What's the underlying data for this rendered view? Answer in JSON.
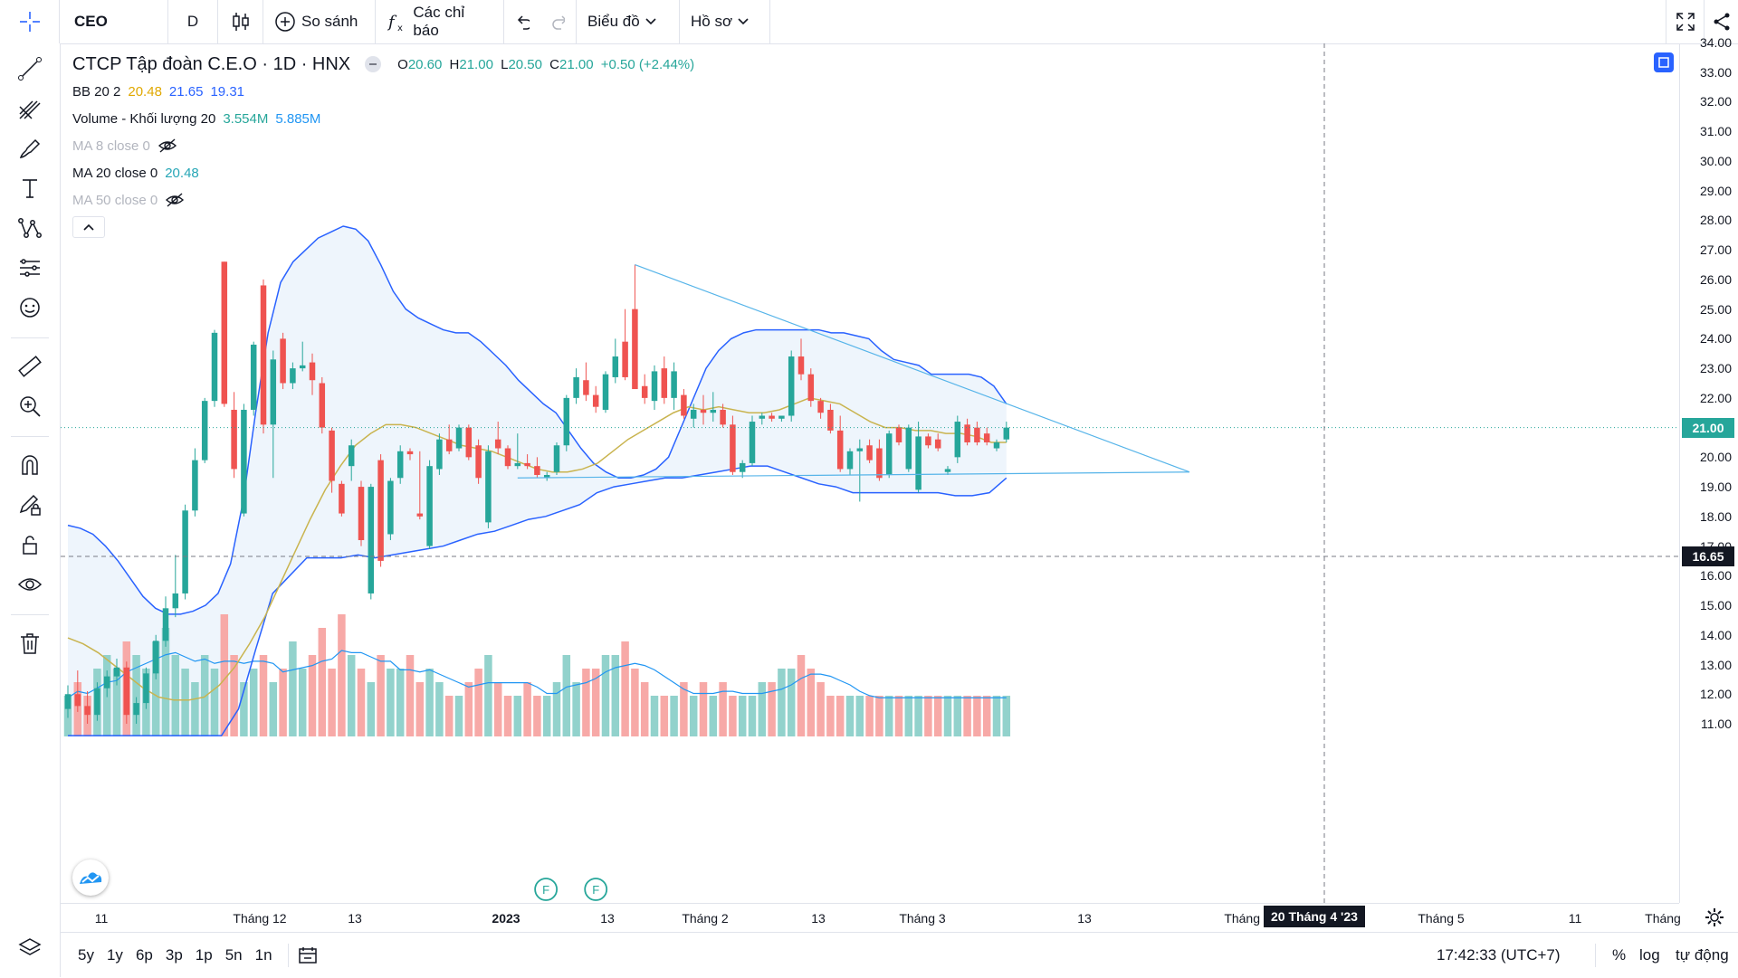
{
  "toolbar": {
    "symbol": "CEO",
    "interval": "D",
    "compare_label": "So sánh",
    "indicators_label": "Các chỉ báo",
    "chart_label": "Biểu đồ",
    "profile_label": "Hồ sơ"
  },
  "legend": {
    "title": "CTCP Tập đoàn C.E.O · 1D · HNX",
    "o_label": "O",
    "o": "20.60",
    "h_label": "H",
    "h": "21.00",
    "l_label": "L",
    "l": "20.50",
    "c_label": "C",
    "c": "21.00",
    "change": "+0.50 (+2.44%)",
    "bb_label": "BB 20 2",
    "bb_mid": "20.48",
    "bb_up": "21.65",
    "bb_low": "19.31",
    "volume_label": "Volume - Khối lượng 20",
    "volume_val": "3.554M",
    "volume_ma": "5.885M",
    "ma8_label": "MA 8 close 0",
    "ma20_label": "MA 20 close 0",
    "ma20_val": "20.48",
    "ma50_label": "MA 50 close 0"
  },
  "price_axis": {
    "labels": [
      "34.00",
      "33.00",
      "32.00",
      "31.00",
      "30.00",
      "29.00",
      "28.00",
      "27.00",
      "26.00",
      "25.00",
      "24.00",
      "23.00",
      "22.00",
      "21.00",
      "20.00",
      "19.00",
      "18.00",
      "17.00",
      "16.00",
      "15.00",
      "14.00",
      "13.00",
      "12.00",
      "11.00"
    ],
    "last_price": "21.00",
    "crosshair_price": "16.65"
  },
  "time_axis": {
    "labels": [
      "11",
      "Tháng 12",
      "13",
      "2023",
      "13",
      "Tháng 2",
      "13",
      "Tháng 3",
      "13",
      "Tháng 4",
      "13",
      "Tháng 5",
      "11",
      "Tháng"
    ],
    "crosshair_label": "20 Tháng 4 '23"
  },
  "bottom": {
    "ranges": [
      "5y",
      "1y",
      "6p",
      "3p",
      "1p",
      "5n",
      "1n"
    ],
    "time": "17:42:33 (UTC+7)",
    "percent": "%",
    "log": "log",
    "auto": "tự động"
  },
  "markers": {
    "f_label": "F"
  },
  "colors": {
    "up": "#26a69a",
    "down": "#ef5350",
    "up_vol": "#92d2cc",
    "down_vol": "#f7a9a7",
    "bb": "#2962ff",
    "ma20": "#c9b44f",
    "bb_fill": "#eaf2fb",
    "trendline": "#56b4e9",
    "accent": "#2962ff"
  },
  "chart_data": {
    "type": "candlestick",
    "price_ylim": [
      10.5,
      34.3
    ],
    "candles": [
      {
        "o": 11.5,
        "h": 12.3,
        "l": 11.2,
        "c": 12.0
      },
      {
        "o": 12.0,
        "h": 12.8,
        "l": 11.4,
        "c": 11.6
      },
      {
        "o": 11.6,
        "h": 12.1,
        "l": 11.0,
        "c": 11.3
      },
      {
        "o": 11.3,
        "h": 12.4,
        "l": 11.1,
        "c": 12.2
      },
      {
        "o": 12.2,
        "h": 12.8,
        "l": 11.9,
        "c": 12.6
      },
      {
        "o": 12.6,
        "h": 13.2,
        "l": 12.3,
        "c": 12.9
      },
      {
        "o": 12.9,
        "h": 13.1,
        "l": 11.0,
        "c": 11.3
      },
      {
        "o": 11.3,
        "h": 11.9,
        "l": 11.0,
        "c": 11.7
      },
      {
        "o": 11.7,
        "h": 12.9,
        "l": 11.5,
        "c": 12.7
      },
      {
        "o": 12.7,
        "h": 14.0,
        "l": 12.5,
        "c": 13.8
      },
      {
        "o": 13.8,
        "h": 15.3,
        "l": 13.6,
        "c": 14.9
      },
      {
        "o": 14.9,
        "h": 16.7,
        "l": 14.6,
        "c": 15.4
      },
      {
        "o": 15.4,
        "h": 18.4,
        "l": 15.2,
        "c": 18.2
      },
      {
        "o": 18.2,
        "h": 20.3,
        "l": 18.0,
        "c": 19.9
      },
      {
        "o": 19.9,
        "h": 22.0,
        "l": 19.8,
        "c": 21.9
      },
      {
        "o": 21.9,
        "h": 24.3,
        "l": 21.7,
        "c": 24.2
      },
      {
        "o": 26.6,
        "h": 26.6,
        "l": 21.7,
        "c": 21.8
      },
      {
        "o": 21.6,
        "h": 22.2,
        "l": 19.3,
        "c": 19.6
      },
      {
        "o": 18.1,
        "h": 21.8,
        "l": 18.0,
        "c": 21.6
      },
      {
        "o": 21.6,
        "h": 23.9,
        "l": 21.4,
        "c": 23.8
      },
      {
        "o": 25.8,
        "h": 26.0,
        "l": 20.8,
        "c": 21.1
      },
      {
        "o": 21.1,
        "h": 23.6,
        "l": 19.3,
        "c": 23.3
      },
      {
        "o": 24.0,
        "h": 24.2,
        "l": 22.3,
        "c": 22.5
      },
      {
        "o": 22.5,
        "h": 23.2,
        "l": 22.3,
        "c": 23.0
      },
      {
        "o": 23.0,
        "h": 23.9,
        "l": 22.9,
        "c": 23.1
      },
      {
        "o": 23.2,
        "h": 23.5,
        "l": 22.1,
        "c": 22.6
      },
      {
        "o": 22.5,
        "h": 22.7,
        "l": 20.8,
        "c": 21.0
      },
      {
        "o": 20.9,
        "h": 21.0,
        "l": 18.8,
        "c": 19.2
      },
      {
        "o": 19.1,
        "h": 19.2,
        "l": 18.0,
        "c": 18.1
      },
      {
        "o": 19.7,
        "h": 20.6,
        "l": 19.2,
        "c": 20.4
      },
      {
        "o": 19.0,
        "h": 19.2,
        "l": 17.0,
        "c": 17.2
      },
      {
        "o": 15.4,
        "h": 19.1,
        "l": 15.2,
        "c": 19.0
      },
      {
        "o": 19.9,
        "h": 20.1,
        "l": 16.3,
        "c": 16.5
      },
      {
        "o": 17.4,
        "h": 19.3,
        "l": 17.2,
        "c": 19.2
      },
      {
        "o": 19.3,
        "h": 20.4,
        "l": 19.1,
        "c": 20.2
      },
      {
        "o": 20.2,
        "h": 20.3,
        "l": 19.9,
        "c": 20.1
      },
      {
        "o": 18.1,
        "h": 20.2,
        "l": 17.9,
        "c": 18.0
      },
      {
        "o": 17.0,
        "h": 19.9,
        "l": 16.9,
        "c": 19.7
      },
      {
        "o": 19.6,
        "h": 20.8,
        "l": 19.4,
        "c": 20.6
      },
      {
        "o": 20.6,
        "h": 21.1,
        "l": 20.1,
        "c": 20.2
      },
      {
        "o": 20.3,
        "h": 21.1,
        "l": 20.2,
        "c": 21.0
      },
      {
        "o": 21.0,
        "h": 21.1,
        "l": 19.9,
        "c": 20.0
      },
      {
        "o": 20.4,
        "h": 20.6,
        "l": 19.1,
        "c": 19.3
      },
      {
        "o": 17.8,
        "h": 20.4,
        "l": 17.6,
        "c": 20.2
      },
      {
        "o": 20.6,
        "h": 21.2,
        "l": 20.1,
        "c": 20.3
      },
      {
        "o": 20.3,
        "h": 20.4,
        "l": 19.6,
        "c": 19.7
      },
      {
        "o": 19.7,
        "h": 20.8,
        "l": 19.6,
        "c": 19.8
      },
      {
        "o": 19.8,
        "h": 20.1,
        "l": 19.6,
        "c": 19.7
      },
      {
        "o": 19.7,
        "h": 20.0,
        "l": 19.3,
        "c": 19.4
      },
      {
        "o": 19.3,
        "h": 19.5,
        "l": 19.2,
        "c": 19.4
      },
      {
        "o": 19.5,
        "h": 20.5,
        "l": 19.4,
        "c": 20.4
      },
      {
        "o": 20.4,
        "h": 22.1,
        "l": 20.2,
        "c": 22.0
      },
      {
        "o": 22.0,
        "h": 23.0,
        "l": 21.8,
        "c": 22.7
      },
      {
        "o": 22.6,
        "h": 23.2,
        "l": 21.9,
        "c": 22.1
      },
      {
        "o": 22.1,
        "h": 22.4,
        "l": 21.5,
        "c": 21.7
      },
      {
        "o": 21.6,
        "h": 22.9,
        "l": 21.5,
        "c": 22.8
      },
      {
        "o": 22.7,
        "h": 24.0,
        "l": 22.5,
        "c": 23.4
      },
      {
        "o": 23.9,
        "h": 25.0,
        "l": 22.6,
        "c": 22.7
      },
      {
        "o": 25.0,
        "h": 26.5,
        "l": 22.3,
        "c": 22.3
      },
      {
        "o": 22.4,
        "h": 22.8,
        "l": 21.8,
        "c": 22.0
      },
      {
        "o": 21.9,
        "h": 23.1,
        "l": 21.6,
        "c": 22.9
      },
      {
        "o": 23.0,
        "h": 23.4,
        "l": 21.8,
        "c": 22.0
      },
      {
        "o": 22.0,
        "h": 23.2,
        "l": 21.6,
        "c": 22.9
      },
      {
        "o": 22.1,
        "h": 22.3,
        "l": 21.3,
        "c": 21.4
      },
      {
        "o": 21.3,
        "h": 21.8,
        "l": 21.0,
        "c": 21.6
      },
      {
        "o": 21.6,
        "h": 22.1,
        "l": 21.1,
        "c": 21.5
      },
      {
        "o": 21.5,
        "h": 22.2,
        "l": 21.2,
        "c": 21.6
      },
      {
        "o": 21.6,
        "h": 21.8,
        "l": 21.0,
        "c": 21.1
      },
      {
        "o": 21.1,
        "h": 21.4,
        "l": 19.4,
        "c": 19.5
      },
      {
        "o": 19.5,
        "h": 19.9,
        "l": 19.3,
        "c": 19.8
      },
      {
        "o": 19.8,
        "h": 21.4,
        "l": 19.7,
        "c": 21.2
      },
      {
        "o": 21.3,
        "h": 21.5,
        "l": 21.1,
        "c": 21.4
      },
      {
        "o": 21.4,
        "h": 21.5,
        "l": 21.2,
        "c": 21.3
      },
      {
        "o": 21.3,
        "h": 21.4,
        "l": 21.2,
        "c": 21.4
      },
      {
        "o": 21.4,
        "h": 23.6,
        "l": 21.2,
        "c": 23.4
      },
      {
        "o": 23.4,
        "h": 24.0,
        "l": 22.6,
        "c": 22.8
      },
      {
        "o": 22.8,
        "h": 23.0,
        "l": 21.7,
        "c": 21.9
      },
      {
        "o": 21.9,
        "h": 22.0,
        "l": 21.3,
        "c": 21.5
      },
      {
        "o": 21.6,
        "h": 21.8,
        "l": 20.8,
        "c": 20.9
      },
      {
        "o": 20.9,
        "h": 21.4,
        "l": 19.5,
        "c": 19.6
      },
      {
        "o": 19.6,
        "h": 20.3,
        "l": 19.4,
        "c": 20.2
      },
      {
        "o": 20.2,
        "h": 20.6,
        "l": 18.5,
        "c": 20.3
      },
      {
        "o": 20.4,
        "h": 20.6,
        "l": 19.8,
        "c": 19.9
      },
      {
        "o": 20.3,
        "h": 20.6,
        "l": 19.2,
        "c": 19.3
      },
      {
        "o": 19.4,
        "h": 20.9,
        "l": 19.3,
        "c": 20.8
      },
      {
        "o": 21.0,
        "h": 21.1,
        "l": 20.4,
        "c": 20.5
      },
      {
        "o": 19.6,
        "h": 21.1,
        "l": 19.5,
        "c": 21.0
      },
      {
        "o": 18.9,
        "h": 21.2,
        "l": 18.8,
        "c": 20.7
      },
      {
        "o": 20.7,
        "h": 20.8,
        "l": 20.3,
        "c": 20.4
      },
      {
        "o": 20.6,
        "h": 20.8,
        "l": 20.2,
        "c": 20.3
      },
      {
        "o": 19.5,
        "h": 19.7,
        "l": 19.4,
        "c": 19.6
      },
      {
        "o": 20.0,
        "h": 21.4,
        "l": 19.8,
        "c": 21.2
      },
      {
        "o": 21.1,
        "h": 21.3,
        "l": 20.4,
        "c": 20.5
      },
      {
        "o": 21.0,
        "h": 21.2,
        "l": 20.4,
        "c": 20.5
      },
      {
        "o": 20.8,
        "h": 21.0,
        "l": 20.4,
        "c": 20.5
      },
      {
        "o": 20.3,
        "h": 20.6,
        "l": 20.2,
        "c": 20.5
      },
      {
        "o": 20.6,
        "h": 21.2,
        "l": 20.5,
        "c": 21.0
      }
    ],
    "volume_rel": [
      0.3,
      0.4,
      0.3,
      0.5,
      0.6,
      0.5,
      0.7,
      0.6,
      0.5,
      0.7,
      0.8,
      0.6,
      0.5,
      0.4,
      0.6,
      0.5,
      0.9,
      0.6,
      0.4,
      0.5,
      0.6,
      0.4,
      0.5,
      0.7,
      0.5,
      0.6,
      0.8,
      0.5,
      0.9,
      0.6,
      0.5,
      0.4,
      0.6,
      0.5,
      0.5,
      0.6,
      0.4,
      0.5,
      0.4,
      0.3,
      0.3,
      0.4,
      0.5,
      0.6,
      0.4,
      0.3,
      0.3,
      0.4,
      0.3,
      0.3,
      0.4,
      0.6,
      0.4,
      0.5,
      0.5,
      0.6,
      0.6,
      0.7,
      0.5,
      0.4,
      0.3,
      0.3,
      0.3,
      0.4,
      0.3,
      0.4,
      0.3,
      0.4,
      0.3,
      0.3,
      0.3,
      0.4,
      0.4,
      0.5,
      0.5,
      0.6,
      0.5,
      0.4,
      0.3,
      0.3,
      0.3,
      0.3,
      0.3,
      0.3,
      0.3,
      0.3,
      0.3,
      0.3,
      0.3,
      0.3,
      0.3,
      0.3,
      0.3,
      0.3,
      0.3,
      0.3,
      0.3
    ],
    "bb_upper": [
      17.7,
      17.6,
      17.4,
      17.0,
      16.5,
      15.9,
      15.3,
      14.9,
      14.7,
      14.7,
      14.8,
      15.0,
      15.4,
      16.4,
      18.5,
      21.5,
      24.2,
      25.9,
      26.6,
      27.0,
      27.4,
      27.6,
      27.8,
      27.7,
      27.3,
      26.5,
      25.6,
      25.0,
      24.7,
      24.5,
      24.3,
      24.2,
      24.2,
      23.9,
      23.5,
      23.1,
      22.6,
      22.2,
      21.8,
      21.5,
      20.9,
      20.3,
      19.8,
      19.5,
      19.3,
      19.3,
      19.4,
      19.6,
      20.0,
      21.0,
      22.0,
      23.0,
      23.6,
      24.0,
      24.2,
      24.3,
      24.3,
      24.3,
      24.3,
      24.3,
      24.3,
      24.2,
      24.2,
      24.1,
      24.0,
      23.6,
      23.3,
      23.2,
      23.1,
      22.8,
      22.8,
      22.8,
      22.8,
      22.7,
      22.4,
      21.8
    ],
    "bb_lower": [
      10.5,
      10.0,
      9.0,
      7.0,
      5.0,
      3.0,
      2.0,
      4.0,
      8.0,
      10.0,
      11.5,
      13.5,
      15.4,
      16.0,
      16.6,
      16.6,
      16.6,
      16.7,
      16.6,
      16.7,
      16.8,
      16.9,
      17.0,
      17.2,
      17.4,
      17.5,
      17.7,
      17.9,
      18.0,
      18.2,
      18.4,
      18.8,
      19.0,
      19.1,
      19.2,
      19.3,
      19.3,
      19.4,
      19.5,
      19.6,
      19.7,
      19.7,
      19.5,
      19.3,
      19.1,
      19.0,
      18.8,
      18.8,
      18.8,
      18.8,
      18.8,
      18.8,
      18.7,
      18.7,
      18.8,
      19.3
    ],
    "ma20": [
      13.9,
      13.7,
      13.4,
      13.0,
      12.6,
      12.2,
      11.9,
      11.8,
      11.8,
      11.9,
      12.3,
      12.9,
      13.7,
      14.6,
      15.7,
      16.8,
      17.9,
      18.9,
      19.7,
      20.4,
      20.8,
      21.1,
      21.1,
      21.0,
      20.8,
      20.6,
      20.4,
      20.3,
      20.2,
      20.0,
      19.8,
      19.6,
      19.5,
      19.5,
      19.6,
      19.8,
      20.2,
      20.6,
      20.9,
      21.2,
      21.5,
      21.7,
      21.6,
      21.7,
      21.6,
      21.5,
      21.5,
      21.6,
      21.8,
      22.0,
      21.9,
      21.8,
      21.5,
      21.2,
      21.0,
      21.0,
      20.9,
      20.9,
      20.8,
      20.8,
      20.7,
      20.5,
      20.5
    ]
  }
}
